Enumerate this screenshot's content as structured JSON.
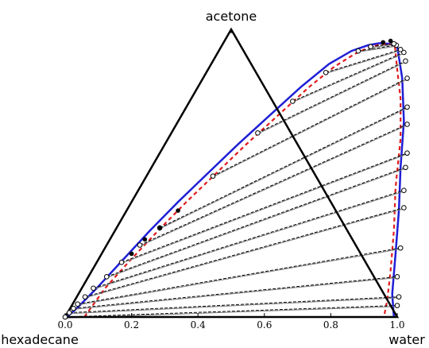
{
  "chart_data": {
    "type": "ternary",
    "vertices": {
      "top": "acetone",
      "bottom_left": "hexadecane",
      "bottom_right": "water"
    },
    "axis": {
      "ticks": [
        0.0,
        0.2,
        0.4,
        0.6,
        0.8,
        1.0
      ],
      "tick_labels": [
        "0.0",
        "0.2",
        "0.4",
        "0.6",
        "0.8",
        "1.0"
      ],
      "range": [
        0,
        1
      ]
    },
    "colors": {
      "triangle": "#000000",
      "binodal_model": "#1f1fd6",
      "binodal_experimental": "#e01b1b",
      "tie_line_experimental": "#000000",
      "tie_line_model": "#808080"
    },
    "binodal_model": {
      "left": [
        [
          0.005,
          0.0
        ],
        [
          0.02,
          0.03
        ],
        [
          0.045,
          0.1
        ],
        [
          0.075,
          0.2
        ],
        [
          0.105,
          0.3
        ],
        [
          0.14,
          0.4
        ],
        [
          0.18,
          0.5
        ],
        [
          0.22,
          0.6
        ],
        [
          0.265,
          0.7
        ],
        [
          0.31,
          0.8
        ],
        [
          0.355,
          0.88
        ],
        [
          0.4,
          0.925
        ],
        [
          0.44,
          0.945
        ],
        [
          0.47,
          0.952
        ],
        [
          0.5,
          0.95
        ],
        [
          0.53,
          0.94
        ]
      ],
      "right": [
        [
          0.53,
          0.94
        ],
        [
          0.6,
          0.83
        ],
        [
          0.68,
          0.68
        ],
        [
          0.75,
          0.52
        ],
        [
          0.82,
          0.37
        ],
        [
          0.885,
          0.22
        ],
        [
          0.945,
          0.08
        ],
        [
          0.99,
          0.0
        ]
      ]
    },
    "binodal_experimental": {
      "left": [
        [
          0.058,
          0.0
        ],
        [
          0.07,
          0.1
        ],
        [
          0.098,
          0.2
        ],
        [
          0.13,
          0.3
        ],
        [
          0.165,
          0.4
        ],
        [
          0.205,
          0.5
        ],
        [
          0.245,
          0.6
        ],
        [
          0.29,
          0.7
        ],
        [
          0.335,
          0.8
        ],
        [
          0.375,
          0.87
        ],
        [
          0.415,
          0.915
        ],
        [
          0.45,
          0.94
        ],
        [
          0.49,
          0.95
        ],
        [
          0.52,
          0.945
        ]
      ],
      "right": [
        [
          0.52,
          0.945
        ],
        [
          0.57,
          0.86
        ],
        [
          0.63,
          0.76
        ],
        [
          0.7,
          0.62
        ],
        [
          0.77,
          0.45
        ],
        [
          0.84,
          0.3
        ],
        [
          0.9,
          0.16
        ],
        [
          0.94,
          0.06
        ],
        [
          0.96,
          0.0
        ]
      ]
    },
    "tie_lines": [
      {
        "left": [
          0.0,
          0.0
        ],
        "right": [
          0.98,
          0.04
        ]
      },
      {
        "left": [
          0.005,
          0.015
        ],
        "right": [
          0.97,
          0.07
        ]
      },
      {
        "left": [
          0.01,
          0.03
        ],
        "right": [
          0.93,
          0.14
        ]
      },
      {
        "left": [
          0.015,
          0.045
        ],
        "right": [
          0.89,
          0.24
        ]
      },
      {
        "left": [
          0.025,
          0.07
        ],
        "right": [
          0.83,
          0.38
        ]
      },
      {
        "left": [
          0.035,
          0.1
        ],
        "right": [
          0.8,
          0.44
        ]
      },
      {
        "left": [
          0.055,
          0.14
        ],
        "right": [
          0.765,
          0.52
        ]
      },
      {
        "left": [
          0.075,
          0.19
        ],
        "right": [
          0.745,
          0.57
        ]
      },
      {
        "left": [
          0.1,
          0.25
        ],
        "right": [
          0.695,
          0.67
        ]
      },
      {
        "left": [
          0.13,
          0.31
        ],
        "right": [
          0.665,
          0.73
        ]
      },
      {
        "left": [
          0.2,
          0.49
        ],
        "right": [
          0.615,
          0.83
        ]
      },
      {
        "left": [
          0.26,
          0.64
        ],
        "right": [
          0.58,
          0.89
        ]
      },
      {
        "left": [
          0.31,
          0.75
        ],
        "right": [
          0.56,
          0.92
        ]
      },
      {
        "left": [
          0.36,
          0.85
        ],
        "right": [
          0.545,
          0.93
        ]
      },
      {
        "left": [
          0.42,
          0.925
        ],
        "right": [
          0.525,
          0.945
        ]
      },
      {
        "left": [
          0.45,
          0.94
        ],
        "right": [
          0.515,
          0.95
        ]
      }
    ],
    "experimental_points_filled": [
      [
        0.13,
        0.31
      ],
      [
        0.155,
        0.37
      ],
      [
        0.105,
        0.27
      ],
      [
        0.09,
        0.22
      ],
      [
        0.5,
        0.96
      ],
      [
        0.48,
        0.955
      ]
    ]
  }
}
